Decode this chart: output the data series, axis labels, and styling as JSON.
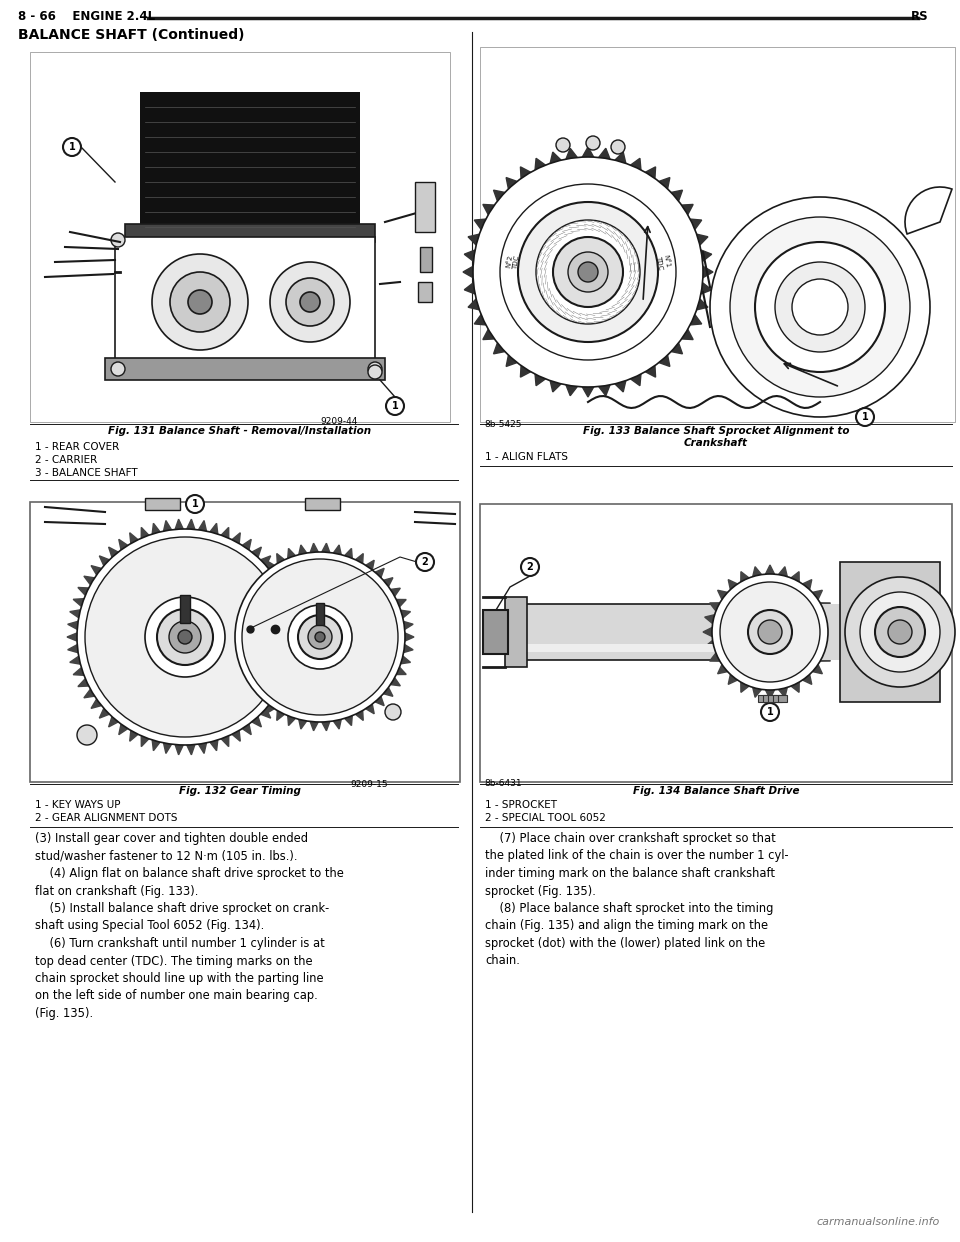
{
  "page_header_left": "8 - 66    ENGINE 2.4L",
  "page_header_right": "RS",
  "section_title": "BALANCE SHAFT (Continued)",
  "bg_color": "#ffffff",
  "text_color": "#000000",
  "fig131_caption": "Fig. 131 Balance Shaft - Removal/Installation",
  "fig131_labels": [
    "1 - REAR COVER",
    "2 - CARRIER",
    "3 - BALANCE SHAFT"
  ],
  "fig132_caption": "Fig. 132 Gear Timing",
  "fig132_labels": [
    "1 - KEY WAYS UP",
    "2 - GEAR ALIGNMENT DOTS"
  ],
  "fig133_caption": "Fig. 133 Balance Shaft Sprocket Alignment to\nCrankshaft",
  "fig133_labels": [
    "1 - ALIGN FLATS"
  ],
  "fig134_caption": "Fig. 134 Balance Shaft Drive",
  "fig134_labels": [
    "1 - SPROCKET",
    "2 - SPECIAL TOOL 6052"
  ],
  "body_text_left": "(3) Install gear cover and tighten double ended\nstud/washer fastener to 12 N·m (105 in. lbs.).\n    (4) Align flat on balance shaft drive sprocket to the\nflat on crankshaft (Fig. 133).\n    (5) Install balance shaft drive sprocket on crank-\nshaft using Special Tool 6052 (Fig. 134).\n    (6) Turn crankshaft until number 1 cylinder is at\ntop dead center (TDC). The timing marks on the\nchain sprocket should line up with the parting line\non the left side of number one main bearing cap.\n(Fig. 135).",
  "body_text_right": "    (7) Place chain over crankshaft sprocket so that\nthe plated link of the chain is over the number 1 cyl-\ninder timing mark on the balance shaft crankshaft\nsprocket (Fig. 135).\n    (8) Place balance shaft sprocket into the timing\nchain (Fig. 135) and align the timing mark on the\nsprocket (dot) with the (lower) plated link on the\nchain.",
  "watermark": "carmanualsonline.info",
  "fig131_code": "9209-44",
  "fig132_code": "9209-15",
  "fig133_code": "8b-5425",
  "fig134_code": "8b-6431",
  "lc": "#1a1a1a",
  "fc_white": "#ffffff",
  "fc_light": "#f0f0f0",
  "fc_dark": "#222222"
}
